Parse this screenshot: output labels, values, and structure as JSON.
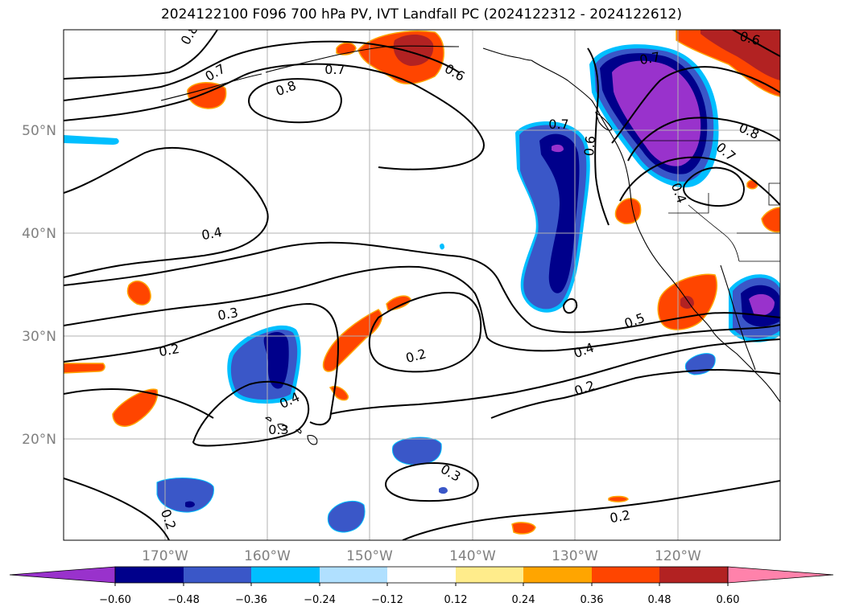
{
  "title": "2024122100 F096 700 hPa PV, IVT Landfall PC (2024122312 - 2024122612)",
  "latitude_labels": [
    "50°N",
    "40°N",
    "30°N",
    "20°N"
  ],
  "longitude_labels": [
    "170°W",
    "160°W",
    "150°W",
    "140°W",
    "130°W",
    "120°W"
  ],
  "colorbar": {
    "tick_labels": [
      "−0.60",
      "−0.48",
      "−0.36",
      "−0.24",
      "−0.12",
      "0.12",
      "0.24",
      "0.36",
      "0.48",
      "0.60"
    ],
    "colors": [
      "#9932cc",
      "#00008b",
      "#3a57c8",
      "#00bfff",
      "#b0e0ff",
      "#ffffff",
      "#ffec8b",
      "#ffa500",
      "#ff4500",
      "#b22222",
      "#ff82ab"
    ]
  },
  "contour_labels": [
    "0.8",
    "0.7",
    "0.7",
    "0.8",
    "0.6",
    "0.7",
    "0.7",
    "0.6",
    "0.6",
    "0.8",
    "0.7",
    "0.4",
    "0.4",
    "0.3",
    "0.2",
    "0.5",
    "0.4",
    "0.2",
    "0.2",
    "0.4",
    "0.3",
    "0.3",
    "0.2",
    "0.2"
  ],
  "colors": {
    "grid": "#b0b0b0",
    "contour": "#000000",
    "coast": "#000000"
  }
}
